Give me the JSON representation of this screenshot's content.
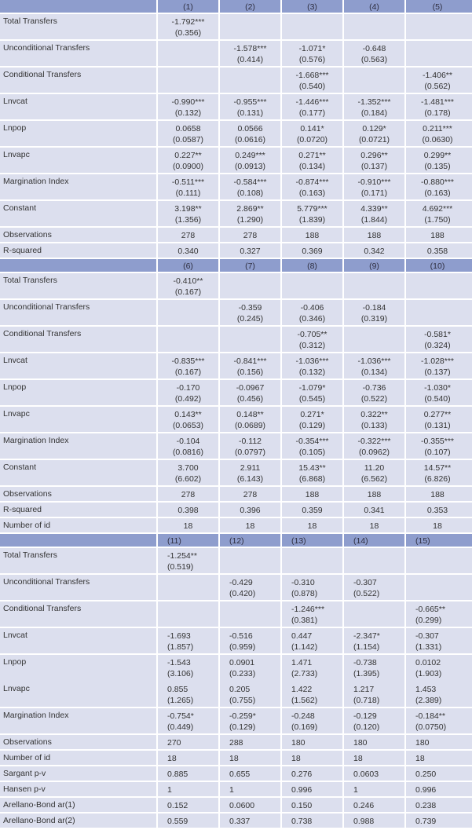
{
  "panels": [
    {
      "headers": [
        "(1)",
        "(2)",
        "(3)",
        "(4)",
        "(5)"
      ],
      "rows": [
        {
          "label": "Total Transfers",
          "cells": [
            [
              "-1.792***",
              "(0.356)"
            ],
            [],
            [],
            [],
            []
          ]
        },
        {
          "label": "Unconditional Transfers",
          "cells": [
            [],
            [
              "-1.578***",
              "(0.414)"
            ],
            [
              "-1.071*",
              "(0.576)"
            ],
            [
              "-0.648",
              "(0.563)"
            ],
            []
          ]
        },
        {
          "label": "Conditional Transfers",
          "cells": [
            [],
            [],
            [
              "-1.668***",
              "(0.540)"
            ],
            [],
            [
              "-1.406**",
              "(0.562)"
            ]
          ]
        },
        {
          "label": "Lnvcat",
          "cells": [
            [
              "-0.990***",
              "(0.132)"
            ],
            [
              "-0.955***",
              "(0.131)"
            ],
            [
              "-1.446***",
              "(0.177)"
            ],
            [
              "-1.352***",
              "(0.184)"
            ],
            [
              "-1.481***",
              "(0.178)"
            ]
          ]
        },
        {
          "label": "Lnpop",
          "cells": [
            [
              "0.0658",
              "(0.0587)"
            ],
            [
              "0.0566",
              "(0.0616)"
            ],
            [
              "0.141*",
              "(0.0720)"
            ],
            [
              "0.129*",
              "(0.0721)"
            ],
            [
              "0.211***",
              "(0.0630)"
            ]
          ]
        },
        {
          "label": "Lnvapc",
          "cells": [
            [
              "0.227**",
              "(0.0900)"
            ],
            [
              "0.249***",
              "(0.0913)"
            ],
            [
              "0.271**",
              "(0.134)"
            ],
            [
              "0.296**",
              "(0.137)"
            ],
            [
              "0.299**",
              "(0.135)"
            ]
          ]
        },
        {
          "label": "Margination Index",
          "cells": [
            [
              "-0.511***",
              "(0.111)"
            ],
            [
              "-0.584***",
              "(0.108)"
            ],
            [
              "-0.874***",
              "(0.163)"
            ],
            [
              "-0.910***",
              "(0.171)"
            ],
            [
              "-0.880***",
              "(0.163)"
            ]
          ]
        },
        {
          "label": "Constant",
          "cells": [
            [
              "3.198**",
              "(1.356)"
            ],
            [
              "2.869**",
              "(1.290)"
            ],
            [
              "5.779***",
              "(1.839)"
            ],
            [
              "4.339**",
              "(1.844)"
            ],
            [
              "4.692***",
              "(1.750)"
            ]
          ]
        },
        {
          "label": "Observations",
          "cells": [
            [
              "278"
            ],
            [
              "278"
            ],
            [
              "188"
            ],
            [
              "188"
            ],
            [
              "188"
            ]
          ]
        },
        {
          "label": "R-squared",
          "cells": [
            [
              "0.340"
            ],
            [
              "0.327"
            ],
            [
              "0.369"
            ],
            [
              "0.342"
            ],
            [
              "0.358"
            ]
          ]
        }
      ]
    },
    {
      "headers": [
        "(6)",
        "(7)",
        "(8)",
        "(9)",
        "(10)"
      ],
      "rows": [
        {
          "label": "Total Transfers",
          "cells": [
            [
              "-0.410**",
              "(0.167)"
            ],
            [],
            [],
            [],
            []
          ]
        },
        {
          "label": "Unconditional Transfers",
          "cells": [
            [],
            [
              "-0.359",
              "(0.245)"
            ],
            [
              "-0.406",
              "(0.346)"
            ],
            [
              "-0.184",
              "(0.319)"
            ],
            []
          ]
        },
        {
          "label": "Conditional Transfers",
          "cells": [
            [],
            [],
            [
              "-0.705**",
              "(0.312)"
            ],
            [],
            [
              "-0.581*",
              "(0.324)"
            ]
          ]
        },
        {
          "label": "Lnvcat",
          "cells": [
            [
              "-0.835***",
              "(0.167)"
            ],
            [
              "-0.841***",
              "(0.156)"
            ],
            [
              "-1.036***",
              "(0.132)"
            ],
            [
              "-1.036***",
              "(0.134)"
            ],
            [
              "-1.028***",
              "(0.137)"
            ]
          ]
        },
        {
          "label": "Lnpop",
          "cells": [
            [
              "-0.170",
              "(0.492)"
            ],
            [
              "-0.0967",
              "(0.456)"
            ],
            [
              "-1.079*",
              "(0.545)"
            ],
            [
              "-0.736",
              "(0.522)"
            ],
            [
              "-1.030*",
              "(0.540)"
            ]
          ]
        },
        {
          "label": "Lnvapc",
          "cells": [
            [
              "0.143**",
              "(0.0653)"
            ],
            [
              "0.148**",
              "(0.0689)"
            ],
            [
              "0.271*",
              "(0.129)"
            ],
            [
              "0.322**",
              "(0.133)"
            ],
            [
              "0.277**",
              "(0.131)"
            ]
          ]
        },
        {
          "label": "Margination Index",
          "cells": [
            [
              "-0.104",
              "(0.0816)"
            ],
            [
              "-0.112",
              "(0.0797)"
            ],
            [
              "-0.354***",
              "(0.105)"
            ],
            [
              "-0.322***",
              "(0.0962)"
            ],
            [
              "-0.355***",
              "(0.107)"
            ]
          ]
        },
        {
          "label": "Constant",
          "cells": [
            [
              "3.700",
              "(6.602)"
            ],
            [
              "2.911",
              "(6.143)"
            ],
            [
              "15.43**",
              "(6.868)"
            ],
            [
              "11.20",
              "(6.562)"
            ],
            [
              "14.57**",
              "(6.826)"
            ]
          ]
        },
        {
          "label": "Observations",
          "cells": [
            [
              "278"
            ],
            [
              "278"
            ],
            [
              "188"
            ],
            [
              "188"
            ],
            [
              "188"
            ]
          ]
        },
        {
          "label": "R-squared",
          "cells": [
            [
              "0.398"
            ],
            [
              "0.396"
            ],
            [
              "0.359"
            ],
            [
              "0.341"
            ],
            [
              "0.353"
            ]
          ]
        },
        {
          "label": "Number of id",
          "cells": [
            [
              "18"
            ],
            [
              "18"
            ],
            [
              "18"
            ],
            [
              "18"
            ],
            [
              "18"
            ]
          ]
        }
      ]
    },
    {
      "headers": [
        "(11)",
        "(12)",
        "(13)",
        "(14)",
        "(15)"
      ],
      "rows": [
        {
          "label": "Total Transfers",
          "cells": [
            [
              "-1.254**",
              "(0.519)"
            ],
            [],
            [],
            [],
            []
          ]
        },
        {
          "label": "Unconditional Transfers",
          "cells": [
            [],
            [
              "-0.429",
              "(0.420)"
            ],
            [
              "-0.310",
              "(0.878)"
            ],
            [
              "-0.307",
              "(0.522)"
            ],
            []
          ]
        },
        {
          "label": "Conditional Transfers",
          "cells": [
            [],
            [],
            [
              "-1.246***",
              "(0.381)"
            ],
            [],
            [
              "-0.665**",
              "(0.299)"
            ]
          ]
        },
        {
          "label": "Lnvcat",
          "cells": [
            [
              "-1.693",
              "(1.857)"
            ],
            [
              "-0.516",
              "(0.959)"
            ],
            [
              "0.447",
              "(1.142)"
            ],
            [
              "-2.347*",
              "(1.154)"
            ],
            [
              "-0.307",
              "(1.331)"
            ]
          ]
        },
        {
          "label": "Lnpop",
          "cells": [
            [
              "-1.543",
              "(3.106)"
            ],
            [
              "0.0901",
              "(0.233)"
            ],
            [
              "1.471",
              "(2.733)"
            ],
            [
              "-0.738",
              "(1.395)"
            ],
            [
              "0.0102",
              "(1.903)"
            ]
          ]
        },
        {
          "label": "Lnvapc",
          "cells": [
            [
              "0.855",
              "(1.265)"
            ],
            [
              "0.205",
              "(0.755)"
            ],
            [
              "1.422",
              "(1.562)"
            ],
            [
              "1.217",
              "(0.718)"
            ],
            [
              "1.453",
              "(2.389)"
            ]
          ]
        },
        {
          "label": "Margination Index",
          "cells": [
            [
              "-0.754*",
              "(0.449)"
            ],
            [
              "-0.259*",
              "(0.129)"
            ],
            [
              "-0.248",
              "(0.169)"
            ],
            [
              "-0.129",
              "(0.120)"
            ],
            [
              "-0.184**",
              "(0.0750)"
            ]
          ]
        },
        {
          "label": "Observations",
          "cells": [
            [
              "270"
            ],
            [
              "288"
            ],
            [
              "180"
            ],
            [
              "180"
            ],
            [
              "180"
            ]
          ]
        },
        {
          "label": "Number of id",
          "cells": [
            [
              "18"
            ],
            [
              "18"
            ],
            [
              "18"
            ],
            [
              "18"
            ],
            [
              "18"
            ]
          ]
        },
        {
          "label": "Sargant p-v",
          "cells": [
            [
              "0.885"
            ],
            [
              "0.655"
            ],
            [
              "0.276"
            ],
            [
              "0.0603"
            ],
            [
              "0.250"
            ]
          ]
        },
        {
          "label": "Hansen p-v",
          "cells": [
            [
              "1"
            ],
            [
              "1"
            ],
            [
              "0.996"
            ],
            [
              "1"
            ],
            [
              "0.996"
            ]
          ]
        },
        {
          "label": "Arellano-Bond ar(1)",
          "cells": [
            [
              "0.152"
            ],
            [
              "0.0600"
            ],
            [
              "0.150"
            ],
            [
              "0.246"
            ],
            [
              "0.238"
            ]
          ]
        },
        {
          "label": "Arellano-Bond ar(2)",
          "cells": [
            [
              "0.559"
            ],
            [
              "0.337"
            ],
            [
              "0.738"
            ],
            [
              "0.988"
            ],
            [
              "0.739"
            ]
          ]
        }
      ]
    }
  ]
}
